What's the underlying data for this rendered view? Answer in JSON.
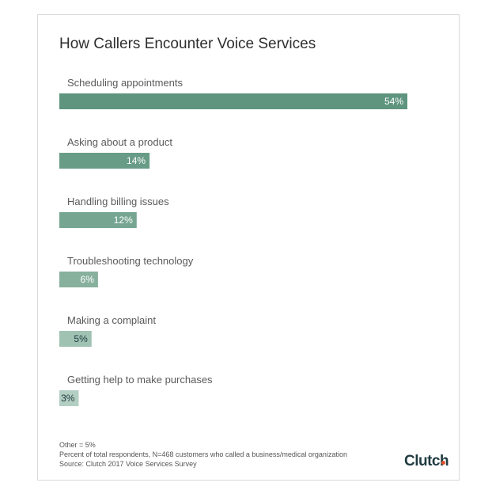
{
  "chart_data": {
    "type": "bar",
    "orientation": "horizontal",
    "title": "How Callers Encounter Voice Services",
    "categories": [
      "Scheduling appointments",
      "Asking about a product",
      "Handling billing issues",
      "Troubleshooting technology",
      "Making a complaint",
      "Getting help to make purchases"
    ],
    "values": [
      54,
      14,
      12,
      6,
      5,
      3
    ],
    "value_labels": [
      "54%",
      "14%",
      "12%",
      "6%",
      "5%",
      "3%"
    ],
    "xlim": [
      0,
      54
    ],
    "grid": false,
    "colors": [
      "#5f957f",
      "#689c86",
      "#76a691",
      "#87b09d",
      "#a0c2b3",
      "#b3cec2"
    ]
  },
  "footer": {
    "other": "Other = 5%",
    "note": "Percent of total respondents, N=468 customers who called a business/medical organization",
    "source": "Source: Clutch 2017 Voice Services Survey"
  },
  "logo": {
    "text": "Clutch",
    "dot_color": "#e0532c"
  }
}
